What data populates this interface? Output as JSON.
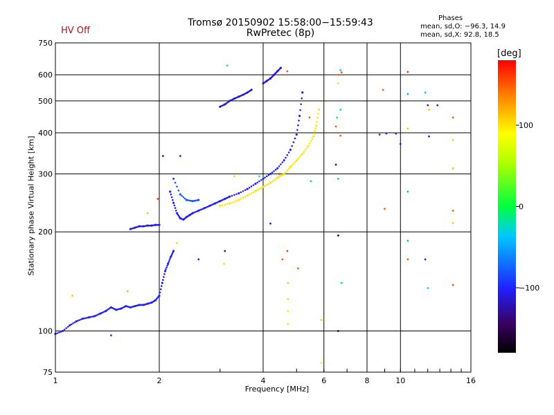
{
  "header": {
    "title": "Tromsø 20150902 15:58:00−15:59:43",
    "subtitle": "RwPretec (8p)",
    "hv_status": "HV Off"
  },
  "phases": {
    "heading": "Phases",
    "o_stats": "mean, sd,O: −96.3, 14.9",
    "x_stats": "mean, sd,X:  92.8, 18.5"
  },
  "colorbar": {
    "unit": "[deg]",
    "ticks": [
      {
        "value": 100,
        "label": "100"
      },
      {
        "value": 0,
        "label": "0"
      },
      {
        "value": -100,
        "label": "−100"
      }
    ],
    "range": [
      -180,
      180
    ]
  },
  "chart_data": {
    "type": "scatter",
    "title": "Tromsø 20150902 15:58:00−15:59:43",
    "subtitle": "RwPretec (8p)",
    "xlabel": "Frequency [MHz]",
    "ylabel": "Stationary phase Virtual Height [km]",
    "xscale": "log",
    "yscale": "log",
    "xlim": [
      1,
      16
    ],
    "ylim": [
      75,
      750
    ],
    "xticks": [
      {
        "v": 1,
        "label": "1"
      },
      {
        "v": 2,
        "label": "2"
      },
      {
        "v": 4,
        "label": "4"
      },
      {
        "v": 6,
        "label": "6"
      },
      {
        "v": 8,
        "label": "8"
      },
      {
        "v": 10,
        "label": "10"
      },
      {
        "v": 16,
        "label": "16"
      }
    ],
    "yticks": [
      {
        "v": 75,
        "label": "75"
      },
      {
        "v": 100,
        "label": "100"
      },
      {
        "v": 200,
        "label": "200"
      },
      {
        "v": 300,
        "label": "300"
      },
      {
        "v": 400,
        "label": "400"
      },
      {
        "v": 500,
        "label": "500"
      },
      {
        "v": 600,
        "label": "600"
      },
      {
        "v": 750,
        "label": "750"
      }
    ],
    "grid": true,
    "color_by": "phase_deg",
    "segments": [
      {
        "freq": [
          1.0,
          1.05,
          1.1,
          1.15,
          1.2,
          1.25,
          1.3,
          1.35,
          1.4,
          1.45,
          1.5,
          1.55,
          1.6,
          1.65,
          1.7,
          1.75,
          1.8,
          1.85,
          1.9,
          1.95,
          2.0,
          2.04,
          2.08,
          2.12,
          2.16,
          2.2
        ],
        "height": [
          98,
          100,
          104,
          107,
          109,
          110,
          111,
          113,
          115,
          118,
          116,
          117,
          119,
          118,
          119,
          120,
          120,
          121,
          122,
          124,
          128,
          140,
          152,
          160,
          168,
          175
        ],
        "phase": -100
      },
      {
        "freq": [
          1.65,
          1.7,
          1.75,
          1.8,
          1.85,
          1.9,
          1.95,
          2.0
        ],
        "height": [
          204,
          206,
          208,
          208,
          209,
          209,
          210,
          210
        ],
        "phase": -105
      },
      {
        "freq": [
          2.15,
          2.2,
          2.25,
          2.3,
          2.35,
          2.4,
          2.45,
          2.5,
          2.6,
          2.7,
          2.8,
          2.9,
          3.0,
          3.1,
          3.2,
          3.4,
          3.6,
          3.8,
          4.0,
          4.2,
          4.4,
          4.6,
          4.8,
          5.0,
          5.1,
          5.2
        ],
        "height": [
          265,
          245,
          228,
          220,
          218,
          222,
          225,
          228,
          232,
          236,
          240,
          244,
          248,
          252,
          256,
          262,
          270,
          280,
          290,
          300,
          312,
          330,
          355,
          395,
          450,
          530
        ],
        "phase": -100
      },
      {
        "freq": [
          2.2,
          2.3,
          2.4,
          2.5,
          2.6
        ],
        "height": [
          290,
          260,
          250,
          248,
          250
        ],
        "phase": -80
      },
      {
        "freq": [
          3.0,
          3.2,
          3.4,
          3.6,
          3.8,
          4.0,
          4.2,
          4.4,
          4.6,
          4.8,
          5.0,
          5.2,
          5.4,
          5.6,
          5.7,
          5.8
        ],
        "height": [
          240,
          244,
          250,
          258,
          266,
          274,
          282,
          292,
          300,
          315,
          330,
          345,
          365,
          390,
          420,
          470
        ],
        "phase": 100
      },
      {
        "freq": [
          3.0,
          3.1,
          3.2,
          3.3,
          3.4,
          3.5,
          3.6,
          3.7
        ],
        "height": [
          480,
          488,
          500,
          508,
          515,
          522,
          530,
          540
        ],
        "phase": -110
      },
      {
        "freq": [
          4.0,
          4.1,
          4.2,
          4.3,
          4.4,
          4.5
        ],
        "height": [
          565,
          575,
          585,
          600,
          615,
          630
        ],
        "phase": -110
      }
    ],
    "scattered": [
      {
        "freq": 1.12,
        "height": 128,
        "phase": 110
      },
      {
        "freq": 1.45,
        "height": 97,
        "phase": -90
      },
      {
        "freq": 1.62,
        "height": 132,
        "phase": 30
      },
      {
        "freq": 1.85,
        "height": 228,
        "phase": 110
      },
      {
        "freq": 1.98,
        "height": 252,
        "phase": 160
      },
      {
        "freq": 2.05,
        "height": 340,
        "phase": -110
      },
      {
        "freq": 2.25,
        "height": 185,
        "phase": 110
      },
      {
        "freq": 2.3,
        "height": 340,
        "phase": -110
      },
      {
        "freq": 2.6,
        "height": 165,
        "phase": -110
      },
      {
        "freq": 3.15,
        "height": 640,
        "phase": -20
      },
      {
        "freq": 3.08,
        "height": 160,
        "phase": 60
      },
      {
        "freq": 3.1,
        "height": 175,
        "phase": -130
      },
      {
        "freq": 3.3,
        "height": 295,
        "phase": 105
      },
      {
        "freq": 3.9,
        "height": 295,
        "phase": -20
      },
      {
        "freq": 4.2,
        "height": 212,
        "phase": -100
      },
      {
        "freq": 4.45,
        "height": 300,
        "phase": 160
      },
      {
        "freq": 4.55,
        "height": 165,
        "phase": 150
      },
      {
        "freq": 4.7,
        "height": 175,
        "phase": 160
      },
      {
        "freq": 4.7,
        "height": 615,
        "phase": 150
      },
      {
        "freq": 4.72,
        "height": 140,
        "phase": 110
      },
      {
        "freq": 4.72,
        "height": 125,
        "phase": 105
      },
      {
        "freq": 4.72,
        "height": 115,
        "phase": 100
      },
      {
        "freq": 4.72,
        "height": 105,
        "phase": 100
      },
      {
        "freq": 5.05,
        "height": 155,
        "phase": 150
      },
      {
        "freq": 5.45,
        "height": 445,
        "phase": 150
      },
      {
        "freq": 5.5,
        "height": 285,
        "phase": -40
      },
      {
        "freq": 5.9,
        "height": 108,
        "phase": 110
      },
      {
        "freq": 5.9,
        "height": 80,
        "phase": 100
      },
      {
        "freq": 6.5,
        "height": 320,
        "phase": -120
      },
      {
        "freq": 6.5,
        "height": 418,
        "phase": 150
      },
      {
        "freq": 6.55,
        "height": 445,
        "phase": 0
      },
      {
        "freq": 6.6,
        "height": 565,
        "phase": 100
      },
      {
        "freq": 6.6,
        "height": 600,
        "phase": 150
      },
      {
        "freq": 6.7,
        "height": 470,
        "phase": -20
      },
      {
        "freq": 6.7,
        "height": 392,
        "phase": 150
      },
      {
        "freq": 6.6,
        "height": 290,
        "phase": -40
      },
      {
        "freq": 6.6,
        "height": 195,
        "phase": -170
      },
      {
        "freq": 6.75,
        "height": 140,
        "phase": -20
      },
      {
        "freq": 6.6,
        "height": 100,
        "phase": -170
      },
      {
        "freq": 6.75,
        "height": 610,
        "phase": 150
      },
      {
        "freq": 6.7,
        "height": 620,
        "phase": -20
      },
      {
        "freq": 8.7,
        "height": 395,
        "phase": -100
      },
      {
        "freq": 8.9,
        "height": 540,
        "phase": 150
      },
      {
        "freq": 9.1,
        "height": 398,
        "phase": -100
      },
      {
        "freq": 9.0,
        "height": 235,
        "phase": 150
      },
      {
        "freq": 9.7,
        "height": 398,
        "phase": -100
      },
      {
        "freq": 10.0,
        "height": 370,
        "phase": -100
      },
      {
        "freq": 10.5,
        "height": 612,
        "phase": 160
      },
      {
        "freq": 10.5,
        "height": 525,
        "phase": -40
      },
      {
        "freq": 10.5,
        "height": 412,
        "phase": 110
      },
      {
        "freq": 10.5,
        "height": 265,
        "phase": -40
      },
      {
        "freq": 10.5,
        "height": 188,
        "phase": -40
      },
      {
        "freq": 10.5,
        "height": 165,
        "phase": 150
      },
      {
        "freq": 11.8,
        "height": 530,
        "phase": -40
      },
      {
        "freq": 12.0,
        "height": 485,
        "phase": -100
      },
      {
        "freq": 12.1,
        "height": 470,
        "phase": 110
      },
      {
        "freq": 12.1,
        "height": 390,
        "phase": -100
      },
      {
        "freq": 11.8,
        "height": 165,
        "phase": -100
      },
      {
        "freq": 12.0,
        "height": 135,
        "phase": -20
      },
      {
        "freq": 12.8,
        "height": 485,
        "phase": -100
      },
      {
        "freq": 14.2,
        "height": 445,
        "phase": 150
      },
      {
        "freq": 14.2,
        "height": 380,
        "phase": 110
      },
      {
        "freq": 14.2,
        "height": 312,
        "phase": 40
      },
      {
        "freq": 14.2,
        "height": 232,
        "phase": 150
      },
      {
        "freq": 14.2,
        "height": 213,
        "phase": 110
      },
      {
        "freq": 14.2,
        "height": 138,
        "phase": 150
      }
    ]
  }
}
